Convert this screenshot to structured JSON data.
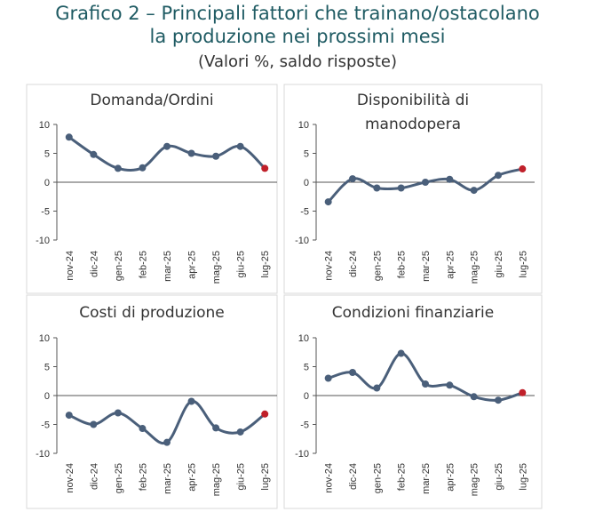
{
  "figure": {
    "title_line1": "Grafico 2 – Principali fattori che trainano/ostacolano",
    "title_line2": "la produzione nei prossimi mesi",
    "subtitle": "(Valori %, saldo risposte)"
  },
  "colors": {
    "line": "#4a5f7a",
    "last_point": "#c0202a",
    "grid_border": "#d9d9d9",
    "axis": "#555555",
    "title": "#1f5b63"
  },
  "chart_data": [
    {
      "type": "line",
      "title_lines": [
        "Domanda/Ordini"
      ],
      "categories": [
        "nov-24",
        "dic-24",
        "gen-25",
        "feb-25",
        "mar-25",
        "apr-25",
        "mag-25",
        "giu-25",
        "lug-25"
      ],
      "values": [
        7.8,
        4.8,
        2.4,
        2.5,
        6.2,
        5.0,
        4.5,
        6.2,
        2.4
      ],
      "ylim": [
        -10,
        10
      ],
      "yticks": [
        10,
        5,
        0,
        -5,
        -10
      ],
      "ytick_labels": [
        "10",
        "5",
        "0",
        "-5",
        "-10"
      ]
    },
    {
      "type": "line",
      "title_lines": [
        "Disponibilità di",
        "manodopera"
      ],
      "categories": [
        "nov-24",
        "dic-24",
        "gen-25",
        "feb-25",
        "mar-25",
        "apr-25",
        "mag-25",
        "giu-25",
        "lug-25"
      ],
      "values": [
        -3.4,
        0.6,
        -1.0,
        -1.0,
        0.0,
        0.5,
        -1.4,
        1.2,
        2.3
      ],
      "ylim": [
        -10,
        10
      ],
      "yticks": [
        10,
        5,
        0,
        -5,
        -10
      ],
      "ytick_labels": [
        "10",
        "5",
        "0",
        "-5",
        "-10"
      ]
    },
    {
      "type": "line",
      "title_lines": [
        "Costi di produzione"
      ],
      "categories": [
        "nov-24",
        "dic-24",
        "gen-25",
        "feb-25",
        "mar-25",
        "apr-25",
        "mag-25",
        "giu-25",
        "lug-25"
      ],
      "values": [
        -3.4,
        -5.0,
        -3.0,
        -5.7,
        -8.1,
        -1.0,
        -5.6,
        -6.3,
        -3.2
      ],
      "ylim": [
        -10,
        10
      ],
      "yticks": [
        10,
        5,
        0,
        -5,
        -10
      ],
      "ytick_labels": [
        "10",
        "5",
        "0",
        "-5",
        "-10"
      ]
    },
    {
      "type": "line",
      "title_lines": [
        "Condizioni finanziarie"
      ],
      "categories": [
        "nov-24",
        "dic-24",
        "gen-25",
        "feb-25",
        "mar-25",
        "apr-25",
        "mag-25",
        "giu-25",
        "lug-25"
      ],
      "values": [
        3.0,
        4.0,
        1.3,
        7.3,
        2.0,
        1.8,
        -0.2,
        -0.8,
        0.5
      ],
      "ylim": [
        -10,
        10
      ],
      "yticks": [
        10,
        5,
        0,
        -5,
        -10
      ],
      "ytick_labels": [
        "10",
        "5",
        "0",
        "-5",
        "-10"
      ]
    }
  ]
}
